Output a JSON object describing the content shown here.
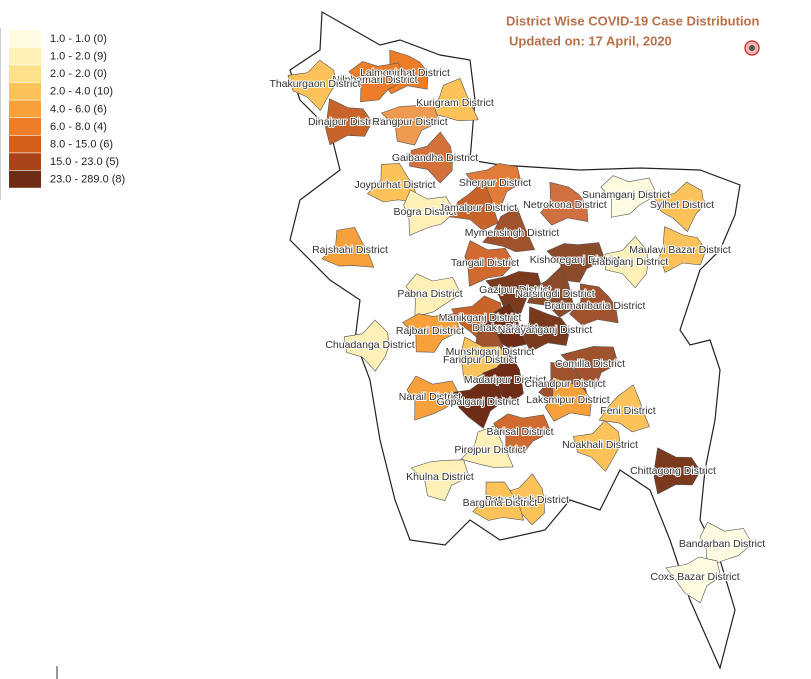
{
  "title": "District  Wise COVID-19 Case Distribution",
  "subtitle": "Updated on: 17 April, 2020",
  "legend": [
    {
      "label": "1.0 - 1.0 (0)",
      "color": "#fffbe0"
    },
    {
      "label": "1.0 - 2.0 (9)",
      "color": "#fff0b8"
    },
    {
      "label": "2.0 - 2.0 (0)",
      "color": "#fde08a"
    },
    {
      "label": "2.0 - 4.0 (10)",
      "color": "#fdc35a"
    },
    {
      "label": "4.0 - 6.0 (6)",
      "color": "#f8a03c"
    },
    {
      "label": "6.0 - 8.0 (4)",
      "color": "#ee7d2a"
    },
    {
      "label": "8.0 - 15.0 (6)",
      "color": "#d45f1a"
    },
    {
      "label": "15.0 - 23.0 (5)",
      "color": "#a8431a"
    },
    {
      "label": "23.0 - 289.0 (8)",
      "color": "#6e2c14"
    }
  ],
  "districts": [
    {
      "label": "Lalmonirhat District",
      "color": "#ee7d2a"
    },
    {
      "label": "Nilphamari District",
      "color": "#ee7d2a"
    },
    {
      "label": "Thakurgaon District",
      "color": "#fdc35a"
    },
    {
      "label": "Kurigram District",
      "color": "#fdc35a"
    },
    {
      "label": "Dinajpur District",
      "color": "#c8642a"
    },
    {
      "label": "Rangpur District",
      "color": "#ee9a50"
    },
    {
      "label": "Gaibandha District",
      "color": "#d4713a"
    },
    {
      "label": "Joypurhat District",
      "color": "#fdc35a"
    },
    {
      "label": "Bogra District",
      "color": "#fff0b8"
    },
    {
      "label": "Sherpur District",
      "color": "#e07b3a"
    },
    {
      "label": "Jamalpur District",
      "color": "#c8642a"
    },
    {
      "label": "Netrokona District",
      "color": "#d07040"
    },
    {
      "label": "Sunamganj District",
      "color": "#fffbe0"
    },
    {
      "label": "Sylhet District",
      "color": "#fdc35a"
    },
    {
      "label": "Mymensingh District",
      "color": "#a0522d"
    },
    {
      "label": "Maulavi Bazar District",
      "color": "#fdc35a"
    },
    {
      "label": "Kishoreganj District",
      "color": "#8b4a2a"
    },
    {
      "label": "Habiganj District",
      "color": "#fff0b8"
    },
    {
      "label": "Rajshahi District",
      "color": "#f8a03c"
    },
    {
      "label": "Tangail District",
      "color": "#d06a30"
    },
    {
      "label": "Gazipur District",
      "color": "#7a3a1e"
    },
    {
      "label": "Narsingdi District",
      "color": "#8b4a2a"
    },
    {
      "label": "Brahmanbaria District",
      "color": "#a0522d"
    },
    {
      "label": "Pabna District",
      "color": "#fff0b8"
    },
    {
      "label": "Manikganj District",
      "color": "#c8642a"
    },
    {
      "label": "Dhaka District",
      "color": "#6e2c14"
    },
    {
      "label": "Narayanganj District",
      "color": "#7a3a1e"
    },
    {
      "label": "Rajbari District",
      "color": "#f8a03c"
    },
    {
      "label": "Chuadanga District",
      "color": "#fff0b8"
    },
    {
      "label": "Munshiganj District",
      "color": "#a0522d"
    },
    {
      "label": "Faridpur District",
      "color": "#fdc35a"
    },
    {
      "label": "Comilla District",
      "color": "#a0522d"
    },
    {
      "label": "Madaripur District",
      "color": "#6e2c14"
    },
    {
      "label": "Chandpur District",
      "color": "#a0522d"
    },
    {
      "label": "Narail District",
      "color": "#f8a03c"
    },
    {
      "label": "Gopalganj District",
      "color": "#6e2c14"
    },
    {
      "label": "Feni District",
      "color": "#fdc35a"
    },
    {
      "label": "Laksmipur District",
      "color": "#f8a03c"
    },
    {
      "label": "Barisal District",
      "color": "#d06a30"
    },
    {
      "label": "Noakhali District",
      "color": "#fdc35a"
    },
    {
      "label": "Pirojpur District",
      "color": "#fff0b8"
    },
    {
      "label": "Chittagong District",
      "color": "#7a3a1e"
    },
    {
      "label": "Khulna District",
      "color": "#fff0b8"
    },
    {
      "label": "Patuakhali District",
      "color": "#fdc35a"
    },
    {
      "label": "Barguna District",
      "color": "#fdc35a"
    },
    {
      "label": "Bandarban District",
      "color": "#fffbe0"
    },
    {
      "label": "Coxs Bazar District",
      "color": "#fffbe0"
    }
  ]
}
